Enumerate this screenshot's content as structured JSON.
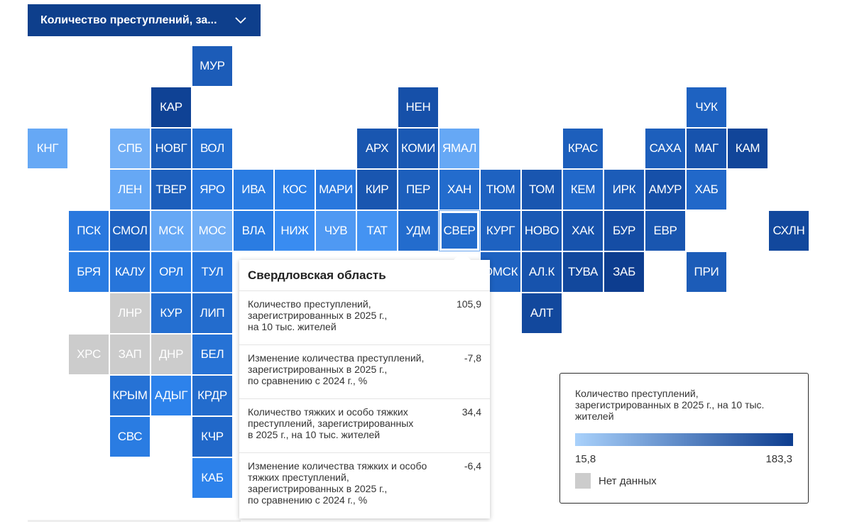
{
  "dropdown": {
    "label": "Количество преступлений, за...",
    "icon": "chevron-down-icon"
  },
  "colors": {
    "dropdown_bg": "#0e3f8c",
    "scale_min": "#a9d1fb",
    "scale_max": "#0d3d8f",
    "no_data": "#cccccc"
  },
  "map": {
    "regions": [
      {
        "label": "МУР",
        "value": 130,
        "row": 0,
        "col": 4
      },
      {
        "label": "КАР",
        "value": 175,
        "row": 1,
        "col": 3
      },
      {
        "label": "НЕН",
        "value": 150,
        "row": 1,
        "col": 9
      },
      {
        "label": "ЧУК",
        "value": 120,
        "row": 1,
        "col": 16
      },
      {
        "label": "КНГ",
        "value": 40,
        "row": 2,
        "col": 0
      },
      {
        "label": "СПБ",
        "value": 35,
        "row": 2,
        "col": 2
      },
      {
        "label": "НОВГ",
        "value": 125,
        "row": 2,
        "col": 3
      },
      {
        "label": "ВОЛ",
        "value": 100,
        "row": 2,
        "col": 4
      },
      {
        "label": "АРХ",
        "value": 140,
        "row": 2,
        "col": 8
      },
      {
        "label": "КОМИ",
        "value": 135,
        "row": 2,
        "col": 9
      },
      {
        "label": "ЯМАЛ",
        "value": 40,
        "row": 2,
        "col": 10
      },
      {
        "label": "КРАС",
        "value": 125,
        "row": 2,
        "col": 13
      },
      {
        "label": "САХА",
        "value": 125,
        "row": 2,
        "col": 15
      },
      {
        "label": "МАГ",
        "value": 145,
        "row": 2,
        "col": 16
      },
      {
        "label": "КАМ",
        "value": 170,
        "row": 2,
        "col": 17
      },
      {
        "label": "ЛЕН",
        "value": 40,
        "row": 3,
        "col": 2
      },
      {
        "label": "ТВЕР",
        "value": 125,
        "row": 3,
        "col": 3
      },
      {
        "label": "ЯРО",
        "value": 85,
        "row": 3,
        "col": 4
      },
      {
        "label": "ИВА",
        "value": 80,
        "row": 3,
        "col": 5
      },
      {
        "label": "КОС",
        "value": 75,
        "row": 3,
        "col": 6
      },
      {
        "label": "МАРИ",
        "value": 85,
        "row": 3,
        "col": 7
      },
      {
        "label": "КИР",
        "value": 140,
        "row": 3,
        "col": 8
      },
      {
        "label": "ПЕР",
        "value": 125,
        "row": 3,
        "col": 9
      },
      {
        "label": "ХАН",
        "value": 105,
        "row": 3,
        "col": 10
      },
      {
        "label": "ТЮМ",
        "value": 120,
        "row": 3,
        "col": 11
      },
      {
        "label": "ТОМ",
        "value": 140,
        "row": 3,
        "col": 12
      },
      {
        "label": "КЕМ",
        "value": 110,
        "row": 3,
        "col": 13
      },
      {
        "label": "ИРК",
        "value": 130,
        "row": 3,
        "col": 14
      },
      {
        "label": "АМУР",
        "value": 150,
        "row": 3,
        "col": 15
      },
      {
        "label": "ХАБ",
        "value": 110,
        "row": 3,
        "col": 16
      },
      {
        "label": "ПСК",
        "value": 85,
        "row": 4,
        "col": 1
      },
      {
        "label": "СМОЛ",
        "value": 120,
        "row": 4,
        "col": 2
      },
      {
        "label": "МСК",
        "value": 40,
        "row": 4,
        "col": 3
      },
      {
        "label": "МОС",
        "value": 35,
        "row": 4,
        "col": 4
      },
      {
        "label": "ВЛА",
        "value": 80,
        "row": 4,
        "col": 5
      },
      {
        "label": "НИЖ",
        "value": 60,
        "row": 4,
        "col": 6
      },
      {
        "label": "ЧУВ",
        "value": 50,
        "row": 4,
        "col": 7
      },
      {
        "label": "ТАТ",
        "value": 55,
        "row": 4,
        "col": 8
      },
      {
        "label": "УДМ",
        "value": 105,
        "row": 4,
        "col": 9
      },
      {
        "label": "СВЕР",
        "value": 105.9,
        "row": 4,
        "col": 10
      },
      {
        "label": "КУРГ",
        "value": 120,
        "row": 4,
        "col": 11
      },
      {
        "label": "НОВО",
        "value": 135,
        "row": 4,
        "col": 12
      },
      {
        "label": "ХАК",
        "value": 145,
        "row": 4,
        "col": 13
      },
      {
        "label": "БУР",
        "value": 155,
        "row": 4,
        "col": 14
      },
      {
        "label": "ЕВР",
        "value": 140,
        "row": 4,
        "col": 15
      },
      {
        "label": "СХЛН",
        "value": 165,
        "row": 4,
        "col": 18
      },
      {
        "label": "БРЯ",
        "value": 80,
        "row": 5,
        "col": 1
      },
      {
        "label": "КАЛУ",
        "value": 90,
        "row": 5,
        "col": 2
      },
      {
        "label": "ОРЛ",
        "value": 80,
        "row": 5,
        "col": 3
      },
      {
        "label": "ТУЛ",
        "value": 85,
        "row": 5,
        "col": 4
      },
      {
        "label": "ОМСК",
        "value": 120,
        "row": 5,
        "col": 11
      },
      {
        "label": "АЛ.К",
        "value": 145,
        "row": 5,
        "col": 12
      },
      {
        "label": "ТУВА",
        "value": 165,
        "row": 5,
        "col": 13
      },
      {
        "label": "ЗАБ",
        "value": 183.3,
        "row": 5,
        "col": 14
      },
      {
        "label": "ПРИ",
        "value": 130,
        "row": 5,
        "col": 16
      },
      {
        "label": "ЛНР",
        "value": null,
        "row": 6,
        "col": 2
      },
      {
        "label": "КУР",
        "value": 100,
        "row": 6,
        "col": 3
      },
      {
        "label": "ЛИП",
        "value": 105,
        "row": 6,
        "col": 4
      },
      {
        "label": "АЛТ",
        "value": 165,
        "row": 6,
        "col": 12
      },
      {
        "label": "ХРС",
        "value": null,
        "row": 7,
        "col": 1
      },
      {
        "label": "ЗАП",
        "value": null,
        "row": 7,
        "col": 2
      },
      {
        "label": "ДНР",
        "value": null,
        "row": 7,
        "col": 3
      },
      {
        "label": "БЕЛ",
        "value": 95,
        "row": 7,
        "col": 4
      },
      {
        "label": "КРЫМ",
        "value": 95,
        "row": 8,
        "col": 2
      },
      {
        "label": "АДЫГ",
        "value": 70,
        "row": 8,
        "col": 3
      },
      {
        "label": "КРДР",
        "value": 105,
        "row": 8,
        "col": 4
      },
      {
        "label": "СВС",
        "value": 80,
        "row": 9,
        "col": 2
      },
      {
        "label": "КЧР",
        "value": 110,
        "row": 9,
        "col": 4
      },
      {
        "label": "КАБ",
        "value": 70,
        "row": 10,
        "col": 4
      }
    ],
    "selected": "СВЕР"
  },
  "tooltip": {
    "title": "Свердловская область",
    "rows": [
      {
        "label": "Количество преступлений,\nзарегистрированных в 2025 г.,\nна 10 тыс. жителей",
        "value": "105,9"
      },
      {
        "label": "Изменение количества преступлений,\nзарегистрированных в 2025 г.,\nпо сравнению с 2024 г., %",
        "value": "-7,8"
      },
      {
        "label": "Количество тяжких и особо тяжких\nпреступлений, зарегистрированных\nв 2025 г., на 10 тыс. жителей",
        "value": "34,4"
      },
      {
        "label": "Изменение количества тяжких и особо\nтяжких преступлений,\nзарегистрированных в 2025 г.,\nпо сравнению с 2024 г., %",
        "value": "-6,4"
      }
    ]
  },
  "legend": {
    "title": "Количество преступлений,\nзарегистрированных в 2025 г., на 10 тыс.\nжителей",
    "min": "15,8",
    "max": "183,3",
    "min_value": 15.8,
    "max_value": 183.3,
    "no_data_label": "Нет данных"
  }
}
